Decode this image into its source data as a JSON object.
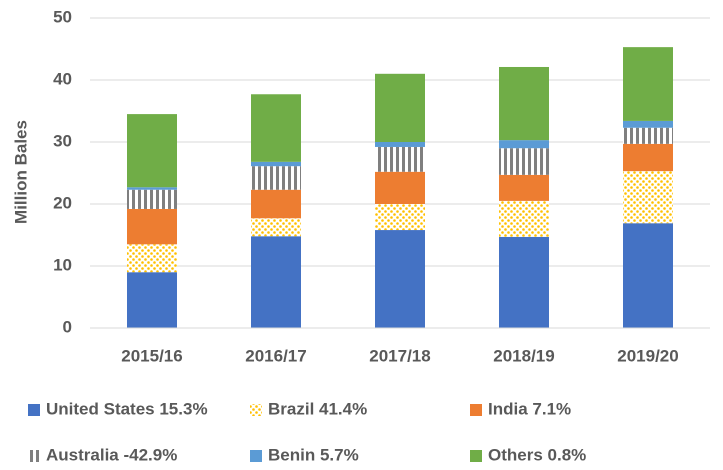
{
  "chart_data": {
    "type": "stacked_bar",
    "y_label": "Million Bales",
    "categories": [
      "2015/16",
      "2016/17",
      "2017/18",
      "2018/19",
      "2019/20"
    ],
    "series": [
      {
        "name": "United States 15.3%",
        "color": "#4472c4",
        "pattern": "solid",
        "values": [
          9.0,
          14.8,
          15.8,
          14.7,
          16.9
        ]
      },
      {
        "name": "Brazil 41.4%",
        "color": "#ffc000",
        "pattern": "dots",
        "values": [
          4.5,
          2.9,
          4.2,
          5.8,
          8.4
        ]
      },
      {
        "name": "India 7.1%",
        "color": "#ed7d31",
        "pattern": "solid",
        "values": [
          5.7,
          4.6,
          5.2,
          4.2,
          4.4
        ]
      },
      {
        "name": "Australia -42.9%",
        "color": "#7f7f7f",
        "pattern": "vertical-stripes",
        "values": [
          3.1,
          3.8,
          4.0,
          4.3,
          2.6
        ]
      },
      {
        "name": "Benin 5.7%",
        "color": "#5b9bd5",
        "pattern": "solid",
        "values": [
          0.4,
          0.7,
          0.8,
          1.3,
          1.1
        ]
      },
      {
        "name": "Others 0.8%",
        "color": "#70ad47",
        "pattern": "solid",
        "values": [
          11.8,
          10.9,
          11.0,
          11.8,
          11.9
        ]
      }
    ],
    "ylim": [
      0,
      50
    ],
    "yticks": [
      0,
      10,
      20,
      30,
      40,
      50
    ],
    "grid": true,
    "legend": "bottom"
  }
}
